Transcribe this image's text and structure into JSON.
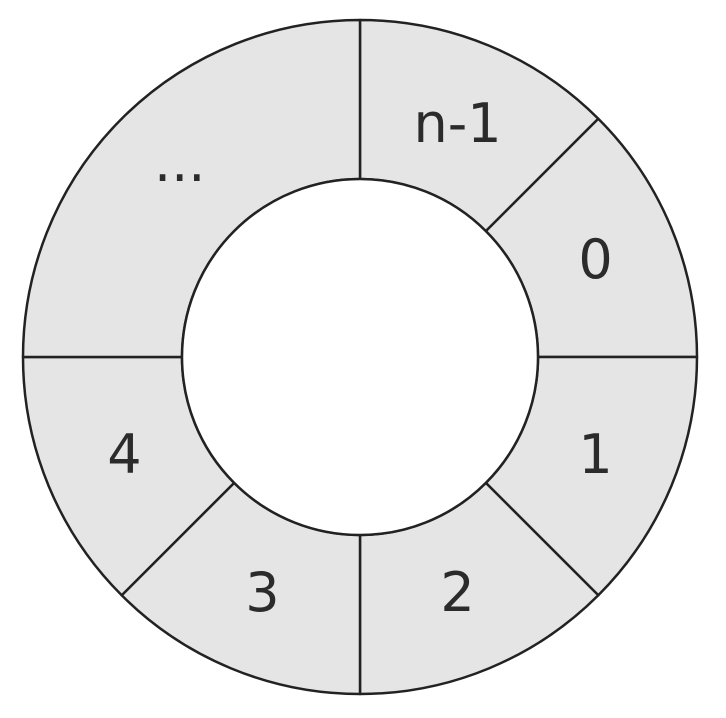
{
  "diagram": {
    "type": "ring-buffer",
    "colors": {
      "segment_fill": "#e5e5e5",
      "stroke": "#222222",
      "center_fill": "#ffffff",
      "label": "#2b2b2b"
    },
    "segments": [
      {
        "label": "n-1"
      },
      {
        "label": "0"
      },
      {
        "label": "1"
      },
      {
        "label": "2"
      },
      {
        "label": "3"
      },
      {
        "label": "4"
      },
      {
        "label": "..."
      }
    ]
  }
}
